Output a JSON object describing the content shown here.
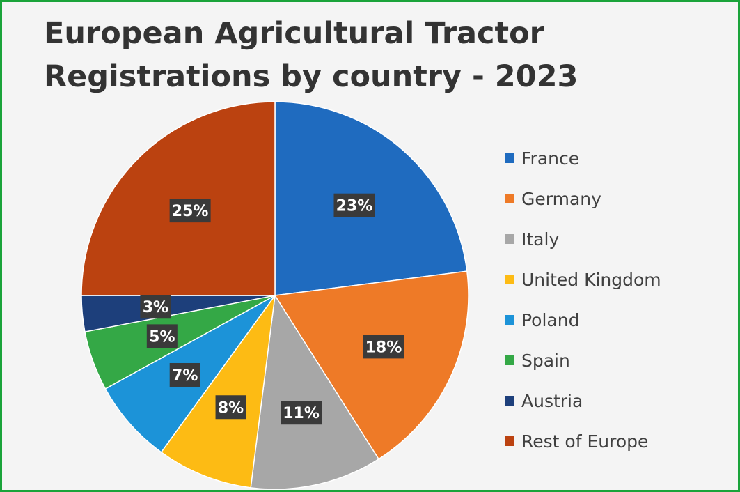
{
  "chart_data": {
    "type": "pie",
    "title": [
      "European Agricultural Tractor",
      "Registrations by country - 2023"
    ],
    "slices": [
      {
        "name": "France",
        "value": 23,
        "label": "23%",
        "color": "#1f6bbf"
      },
      {
        "name": "Germany",
        "value": 18,
        "label": "18%",
        "color": "#ee7a27"
      },
      {
        "name": "Italy",
        "value": 11,
        "label": "11%",
        "color": "#a7a7a7"
      },
      {
        "name": "United Kingdom",
        "value": 8,
        "label": "8%",
        "color": "#fdbb14"
      },
      {
        "name": "Poland",
        "value": 7,
        "label": "7%",
        "color": "#1c93d8"
      },
      {
        "name": "Spain",
        "value": 5,
        "label": "5%",
        "color": "#34a846"
      },
      {
        "name": "Austria",
        "value": 3,
        "label": "3%",
        "color": "#1d3f7b"
      },
      {
        "name": "Rest of Europe",
        "value": 25,
        "label": "25%",
        "color": "#bb4210"
      }
    ],
    "legend_position": "right",
    "start_angle": "12 o'clock",
    "direction": "clockwise"
  }
}
